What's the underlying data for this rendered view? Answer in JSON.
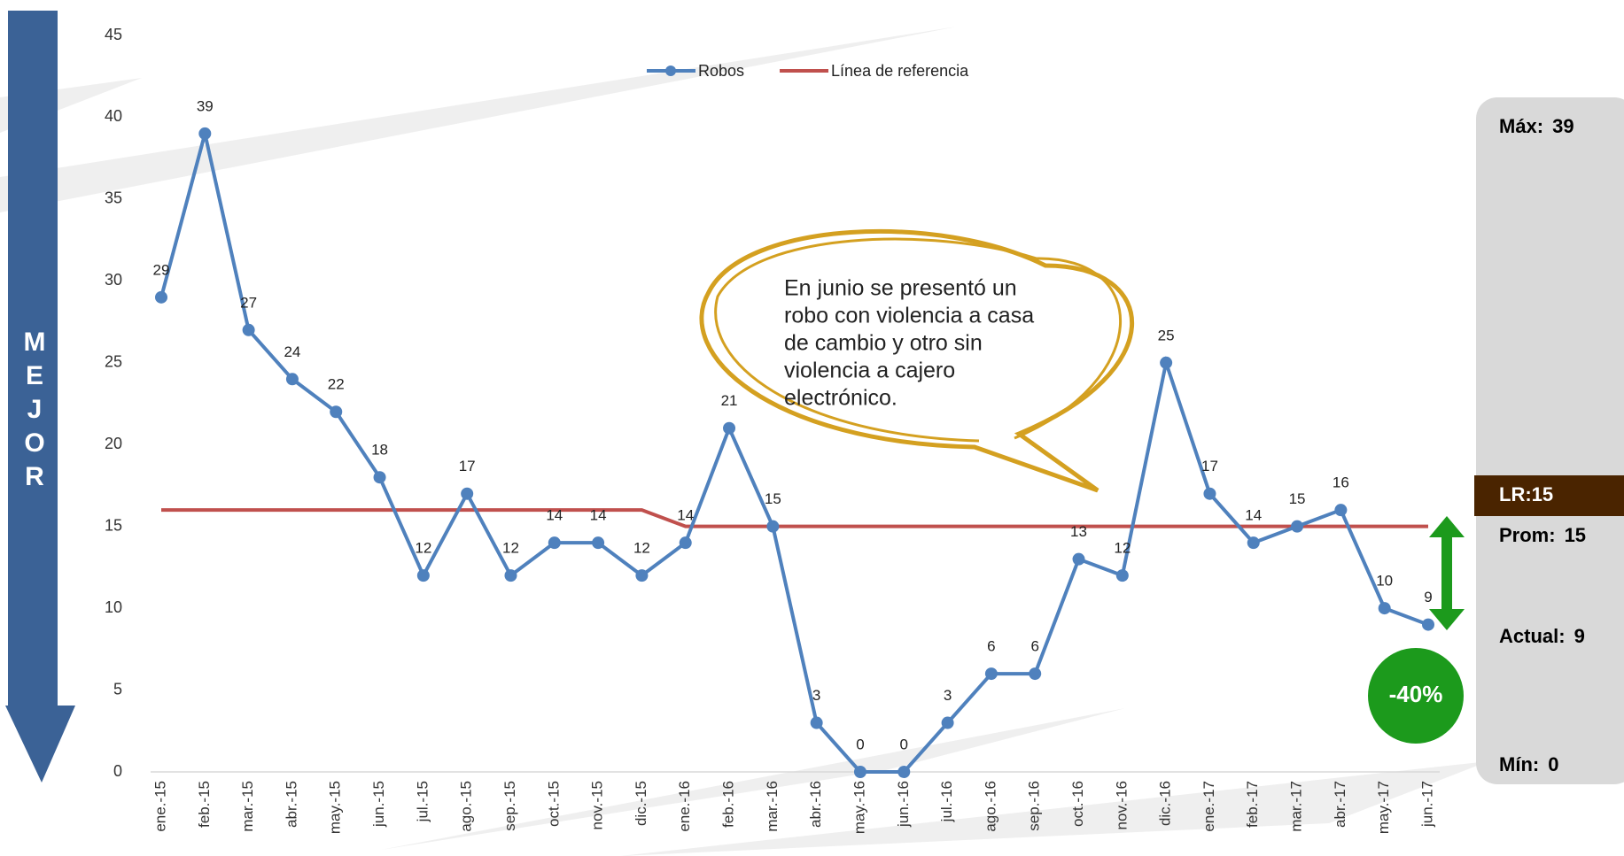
{
  "chart_data": {
    "type": "line",
    "categories": [
      "ene.-15",
      "feb.-15",
      "mar.-15",
      "abr.-15",
      "may.-15",
      "jun.-15",
      "jul.-15",
      "ago.-15",
      "sep.-15",
      "oct.-15",
      "nov.-15",
      "dic.-15",
      "ene.-16",
      "feb.-16",
      "mar.-16",
      "abr.-16",
      "may.-16",
      "jun.-16",
      "jul.-16",
      "ago.-16",
      "sep.-16",
      "oct.-16",
      "nov.-16",
      "dic.-16",
      "ene.-17",
      "feb.-17",
      "mar.-17",
      "abr.-17",
      "may.-17",
      "jun.-17"
    ],
    "series": [
      {
        "name": "Robos",
        "color": "#4f81bd",
        "values": [
          29,
          39,
          27,
          24,
          22,
          18,
          12,
          17,
          12,
          14,
          14,
          12,
          14,
          21,
          15,
          3,
          0,
          0,
          3,
          6,
          6,
          13,
          12,
          25,
          17,
          14,
          15,
          16,
          10,
          9
        ],
        "data_labels": true
      },
      {
        "name": "Línea de referencia",
        "color": "#c0504d",
        "values": [
          16,
          16,
          16,
          16,
          16,
          16,
          16,
          16,
          16,
          16,
          16,
          16,
          15,
          15,
          15,
          15,
          15,
          15,
          15,
          15,
          15,
          15,
          15,
          15,
          15,
          15,
          15,
          15,
          15,
          15
        ]
      }
    ],
    "ylim": [
      0,
      45
    ],
    "yticks": [
      0,
      5,
      10,
      15,
      20,
      25,
      30,
      35,
      40,
      45
    ],
    "grid": false,
    "legend": "top",
    "annotation": [
      "En junio se presentó un",
      "robo con violencia a casa",
      "de cambio y otro sin",
      "violencia a cajero",
      "electrónico."
    ]
  },
  "side_arrow": "MEJOR",
  "summary": {
    "max": {
      "label": "Máx:",
      "value": 39
    },
    "reference": {
      "label": "LR:",
      "value": 15
    },
    "average": {
      "label": "Prom:",
      "value": 15
    },
    "current": {
      "label": "Actual:",
      "value": 9
    },
    "min": {
      "label": "Mín:",
      "value": 0
    }
  },
  "change": "-40%"
}
